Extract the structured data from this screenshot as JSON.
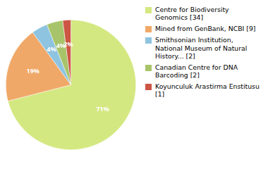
{
  "chart_data": {
    "type": "pie",
    "categories": [
      "Centre for Biodiversity\nGenomics [34]",
      "Mined from GenBank, NCBI [9]",
      "Smithsonian Institution,\nNational Museum of Natural\nHistory... [2]",
      "Canadian Centre for DNA\nBarcoding [2]",
      "Koyunculuk Arastirma Enstitusu [1]"
    ],
    "values": [
      71,
      19,
      4,
      4,
      2
    ],
    "value_labels": [
      "71%",
      "19%",
      "4%",
      "4%",
      "2%"
    ],
    "colors": [
      "#d4e882",
      "#f0a868",
      "#8ec4e0",
      "#a8c46a",
      "#cc5544"
    ],
    "data_labels": true,
    "legend": "right"
  }
}
